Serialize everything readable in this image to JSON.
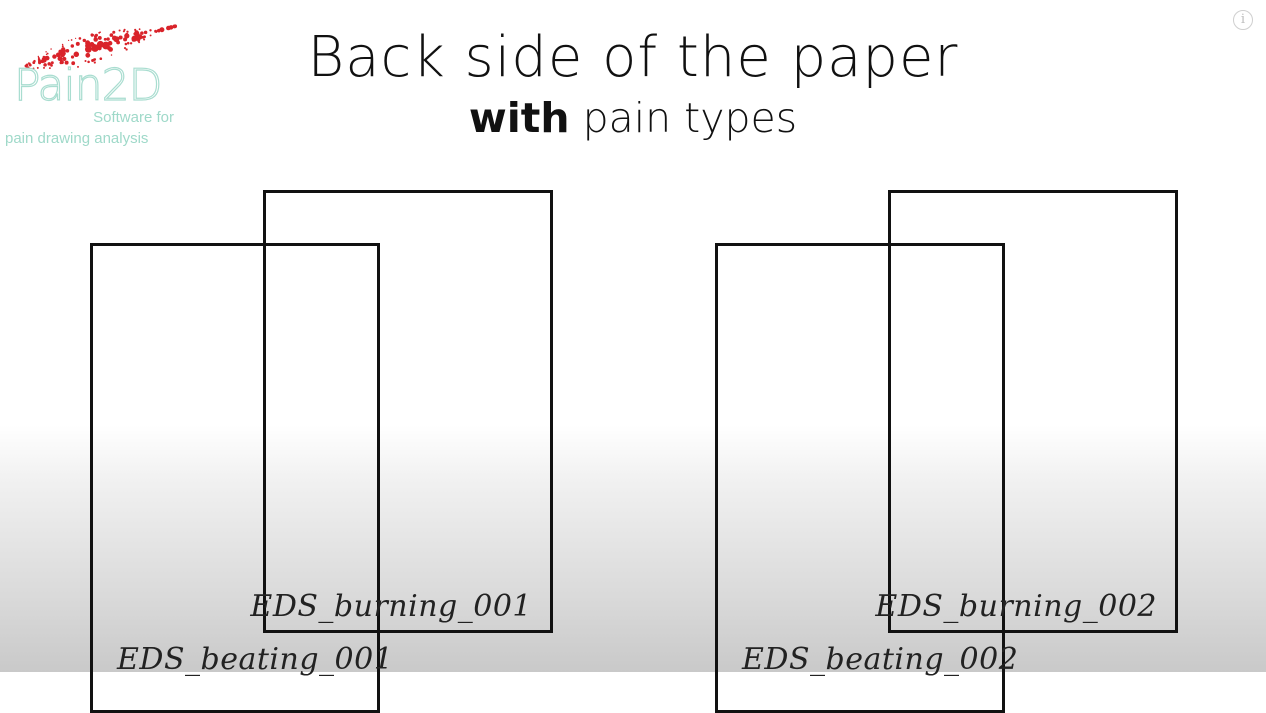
{
  "logo": {
    "wordmark": "Pain2D",
    "tagline_line1": "Software for",
    "tagline_line2": "pain drawing analysis"
  },
  "title": "Back side of the paper",
  "subtitle": {
    "bold": "with",
    "rest": "pain types"
  },
  "info_button": {
    "glyph": "i",
    "icon": "info-icon"
  },
  "sheets": [
    {
      "group": 1,
      "front_label": "EDS_burning_001",
      "back_label": "EDS_beating_001"
    },
    {
      "group": 2,
      "front_label": "EDS_burning_002",
      "back_label": "EDS_beating_002"
    }
  ],
  "colors": {
    "logo_dots": "#d9232a",
    "logo_text": "#9fd9c9",
    "sheet_border": "#111111"
  }
}
